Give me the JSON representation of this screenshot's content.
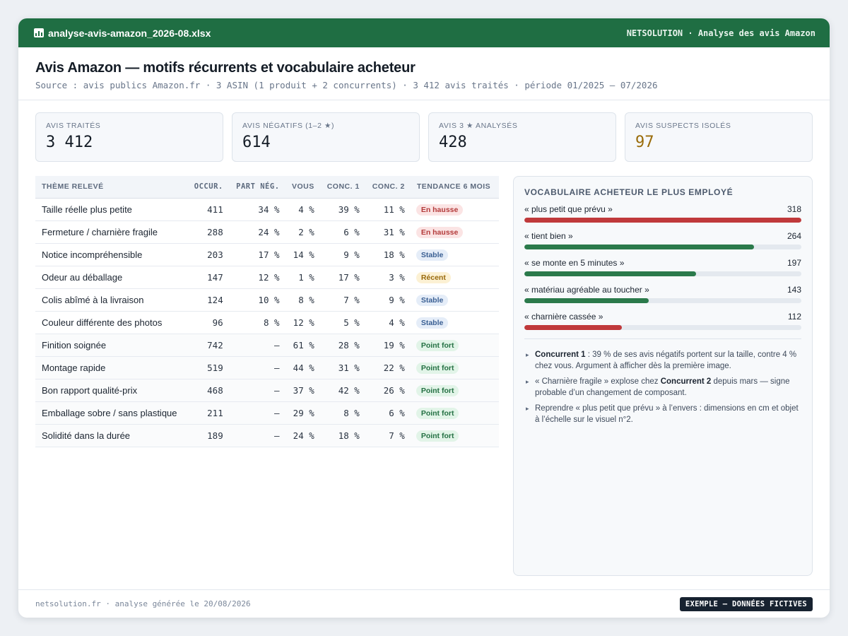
{
  "titlebar": {
    "filename": "analyse-avis-amazon_2026-08.xlsx",
    "app_label": "NETSOLUTION · Analyse des avis Amazon",
    "accent": "#1f6e43"
  },
  "header": {
    "title": "Avis Amazon — motifs récurrents et vocabulaire acheteur",
    "source": "Source : avis publics Amazon.fr · 3 ASIN (1 produit + 2 concurrents) · 3 412 avis traités · période 01/2025 – 07/2026"
  },
  "kpis": [
    {
      "label": "AVIS TRAITÉS",
      "value": "3 412"
    },
    {
      "label": "AVIS NÉGATIFS (1–2 ★)",
      "value": "614"
    },
    {
      "label": "AVIS 3 ★ ANALYSÉS",
      "value": "428"
    },
    {
      "label": "AVIS SUSPECTS ISOLÉS",
      "value": "97"
    }
  ],
  "table": {
    "headers": [
      "THÈME RELEVÉ",
      "OCCUR.",
      "PART NÉG.",
      "VOUS",
      "CONC. 1",
      "CONC. 2",
      "TENDANCE 6 MOIS"
    ],
    "rows": [
      {
        "theme": "Taille réelle plus petite",
        "occur": "411",
        "part_neg": "34 %",
        "vous": "4 %",
        "conc1": "39 %",
        "conc2": "11 %",
        "trend": "En hausse",
        "kind": "hausse"
      },
      {
        "theme": "Fermeture / charnière fragile",
        "occur": "288",
        "part_neg": "24 %",
        "vous": "2 %",
        "conc1": "6 %",
        "conc2": "31 %",
        "trend": "En hausse",
        "kind": "hausse"
      },
      {
        "theme": "Notice incompréhensible",
        "occur": "203",
        "part_neg": "17 %",
        "vous": "14 %",
        "conc1": "9 %",
        "conc2": "18 %",
        "trend": "Stable",
        "kind": "stable"
      },
      {
        "theme": "Odeur au déballage",
        "occur": "147",
        "part_neg": "12 %",
        "vous": "1 %",
        "conc1": "17 %",
        "conc2": "3 %",
        "trend": "Récent",
        "kind": "recent"
      },
      {
        "theme": "Colis abîmé à la livraison",
        "occur": "124",
        "part_neg": "10 %",
        "vous": "8 %",
        "conc1": "7 %",
        "conc2": "9 %",
        "trend": "Stable",
        "kind": "stable"
      },
      {
        "theme": "Couleur différente des photos",
        "occur": "96",
        "part_neg": "8 %",
        "vous": "12 %",
        "conc1": "5 %",
        "conc2": "4 %",
        "trend": "Stable",
        "kind": "stable"
      },
      {
        "theme": "Finition soignée",
        "occur": "742",
        "part_neg": "—",
        "vous": "61 %",
        "conc1": "28 %",
        "conc2": "19 %",
        "trend": "Point fort",
        "kind": "fort"
      },
      {
        "theme": "Montage rapide",
        "occur": "519",
        "part_neg": "—",
        "vous": "44 %",
        "conc1": "31 %",
        "conc2": "22 %",
        "trend": "Point fort",
        "kind": "fort"
      },
      {
        "theme": "Bon rapport qualité-prix",
        "occur": "468",
        "part_neg": "—",
        "vous": "37 %",
        "conc1": "42 %",
        "conc2": "26 %",
        "trend": "Point fort",
        "kind": "fort"
      },
      {
        "theme": "Emballage sobre / sans plastique",
        "occur": "211",
        "part_neg": "—",
        "vous": "29 %",
        "conc1": "8 %",
        "conc2": "6 %",
        "trend": "Point fort",
        "kind": "fort"
      },
      {
        "theme": "Solidité dans la durée",
        "occur": "189",
        "part_neg": "—",
        "vous": "24 %",
        "conc1": "18 %",
        "conc2": "7 %",
        "trend": "Point fort",
        "kind": "fort"
      }
    ]
  },
  "vocab": {
    "title": "VOCABULAIRE ACHETEUR LE PLUS EMPLOYÉ",
    "max": 318,
    "items": [
      {
        "term": "« plus petit que prévu »",
        "count": 318,
        "color": "#c0393b"
      },
      {
        "term": "« tient bien »",
        "count": 264,
        "color": "#2b7a4b"
      },
      {
        "term": "« se monte en 5 minutes »",
        "count": 197,
        "color": "#2b7a4b"
      },
      {
        "term": "« matériau agréable au toucher »",
        "count": 143,
        "color": "#2b7a4b"
      },
      {
        "term": "« charnière cassée »",
        "count": 112,
        "color": "#c0393b"
      }
    ],
    "notes": [
      {
        "bold": "Concurrent 1",
        "text": " : 39 % de ses avis négatifs portent sur la taille, contre 4 % chez vous. Argument à afficher dès la première image."
      },
      {
        "pre": "« Charnière fragile » explose chez ",
        "bold": "Concurrent 2",
        "text": " depuis mars — signe probable d’un changement de composant."
      },
      {
        "text": "Reprendre « plus petit que prévu » à l’envers : dimensions en cm et objet à l’échelle sur le visuel n°2."
      }
    ]
  },
  "footer": {
    "generated": "netsolution.fr · analyse générée le 20/08/2026",
    "tag": "EXEMPLE — DONNÉES FICTIVES"
  }
}
